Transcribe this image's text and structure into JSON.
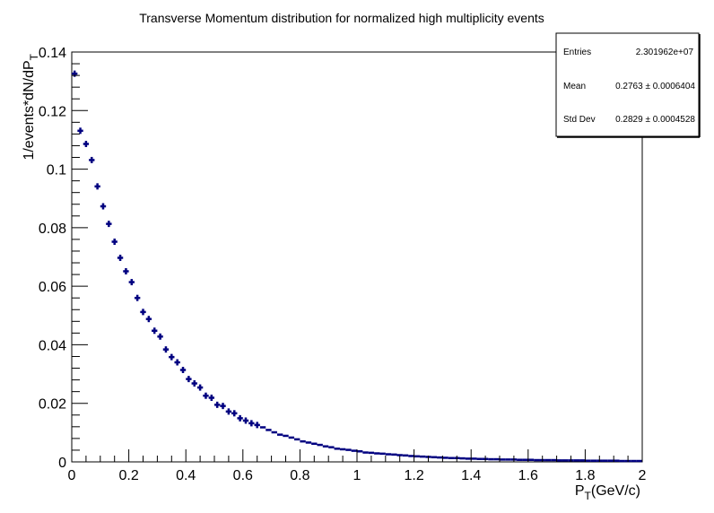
{
  "chart_data": {
    "type": "scatter",
    "title": "Transverse Momentum distribution for normalized high multiplicity events",
    "xlabel_main": "P",
    "xlabel_sub": "T",
    "xlabel_tail": "(GeV/c)",
    "ylabel_main": "1/events*dN/dP",
    "ylabel_sub": "T",
    "xlim": [
      0,
      2
    ],
    "ylim": [
      0,
      0.14
    ],
    "x_ticks": [
      "0",
      "0.2",
      "0.4",
      "0.6",
      "0.8",
      "1",
      "1.2",
      "1.4",
      "1.6",
      "1.8",
      "2"
    ],
    "y_ticks": [
      "0",
      "0.02",
      "0.04",
      "0.06",
      "0.08",
      "0.1",
      "0.12",
      "0.14"
    ],
    "marker_color": "#000080",
    "bin_width": 0.02,
    "series": [
      {
        "x": [
          0.01,
          0.03,
          0.05,
          0.07,
          0.09,
          0.11,
          0.13,
          0.15,
          0.17,
          0.19,
          0.21,
          0.23,
          0.25,
          0.27,
          0.29,
          0.31,
          0.33,
          0.35,
          0.37,
          0.39,
          0.41,
          0.43,
          0.45,
          0.47,
          0.49,
          0.51,
          0.53,
          0.55,
          0.57,
          0.59,
          0.61,
          0.63,
          0.65,
          0.67,
          0.69,
          0.71,
          0.73,
          0.75,
          0.77,
          0.79,
          0.81,
          0.83,
          0.85,
          0.87,
          0.89,
          0.91,
          0.93,
          0.95,
          0.97,
          0.99,
          1.01,
          1.03,
          1.05,
          1.07,
          1.09,
          1.11,
          1.13,
          1.15,
          1.17,
          1.19,
          1.21,
          1.23,
          1.25,
          1.27,
          1.29,
          1.31,
          1.33,
          1.35,
          1.37,
          1.39,
          1.41,
          1.43,
          1.45,
          1.47,
          1.49,
          1.51,
          1.53,
          1.55,
          1.57,
          1.59,
          1.61,
          1.63,
          1.65,
          1.67,
          1.69,
          1.71,
          1.73,
          1.75,
          1.77,
          1.79,
          1.81,
          1.83,
          1.85,
          1.87,
          1.89,
          1.91,
          1.93,
          1.95,
          1.97,
          1.99
        ],
        "y": [
          0.1326,
          0.1131,
          0.1086,
          0.1031,
          0.0941,
          0.0873,
          0.0813,
          0.0752,
          0.0697,
          0.0651,
          0.0614,
          0.056,
          0.0512,
          0.0488,
          0.0448,
          0.0428,
          0.0384,
          0.0358,
          0.034,
          0.0314,
          0.0283,
          0.0268,
          0.0254,
          0.0226,
          0.0219,
          0.0195,
          0.0191,
          0.0172,
          0.0166,
          0.0149,
          0.0141,
          0.0132,
          0.0126,
          0.0118,
          0.0109,
          0.0101,
          0.0093,
          0.0089,
          0.0083,
          0.0077,
          0.007,
          0.0066,
          0.0062,
          0.0058,
          0.0053,
          0.005,
          0.0045,
          0.0043,
          0.0041,
          0.0038,
          0.0036,
          0.0032,
          0.0031,
          0.0029,
          0.0028,
          0.0026,
          0.0025,
          0.0023,
          0.0022,
          0.002,
          0.0019,
          0.0018,
          0.0017,
          0.0016,
          0.0015,
          0.0014,
          0.0013,
          0.0013,
          0.0012,
          0.0011,
          0.0011,
          0.001,
          0.001,
          0.0009,
          0.0009,
          0.0008,
          0.0008,
          0.0008,
          0.0007,
          0.0007,
          0.0007,
          0.0006,
          0.0006,
          0.0006,
          0.0006,
          0.0005,
          0.0005,
          0.0005,
          0.0005,
          0.0005,
          0.0004,
          0.0004,
          0.0004,
          0.0004,
          0.0004,
          0.0004,
          0.0003,
          0.0003,
          0.0003,
          0.0003
        ]
      }
    ]
  },
  "stats": {
    "entries_label": "Entries",
    "entries_value": "2.301962e+07",
    "mean_label": "Mean",
    "mean_value": "0.2763 ± 0.0006404",
    "std_label": "Std Dev",
    "std_value": "0.2829 ± 0.0004528"
  }
}
